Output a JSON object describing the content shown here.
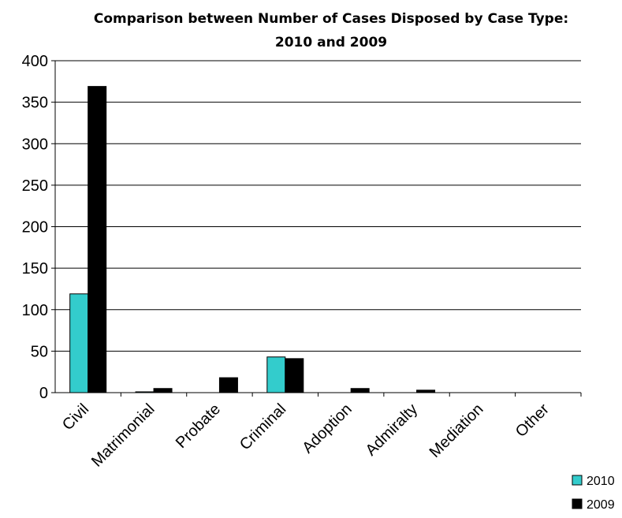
{
  "chart_data": {
    "type": "bar",
    "title_line1": "Comparison between Number of Cases Disposed by Case Type:",
    "title_line2": "2010 and 2009",
    "categories": [
      "Civil",
      "Matrimonial",
      "Probate",
      "Criminal",
      "Adoption",
      "Admiralty",
      "Mediation",
      "Other"
    ],
    "series": [
      {
        "name": "2010",
        "color": "#33CCCC",
        "values": [
          119,
          1,
          0,
          43,
          0,
          0,
          0,
          0
        ]
      },
      {
        "name": "2009",
        "color": "#000000",
        "values": [
          369,
          5,
          18,
          41,
          5,
          3,
          0,
          0
        ]
      }
    ],
    "yticks": [
      "0",
      "50",
      "100",
      "150",
      "200",
      "250",
      "300",
      "350",
      "400"
    ],
    "ylim": [
      0,
      400
    ],
    "grid": true,
    "legend_position": "bottom-right"
  }
}
